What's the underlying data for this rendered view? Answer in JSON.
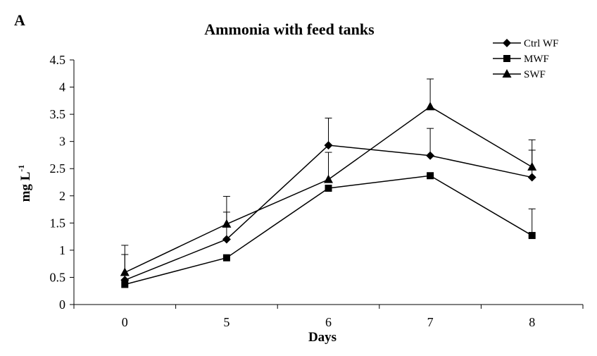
{
  "panel_label": "A",
  "chart_data": {
    "type": "line",
    "title": "Ammonia with feed tanks",
    "xlabel": "Days",
    "ylabel_main": "mg L",
    "ylabel_sup": "-1",
    "categories": [
      "0",
      "5",
      "6",
      "7",
      "8"
    ],
    "ylim": [
      0,
      4.5
    ],
    "yticks": [
      "0",
      "0.5",
      "1",
      "1.5",
      "2",
      "2.5",
      "3",
      "3.5",
      "4",
      "4.5"
    ],
    "grid": false,
    "legend_position": "top-right",
    "series": [
      {
        "name": "Ctrl WF",
        "marker": "diamond",
        "values": [
          0.45,
          1.2,
          2.93,
          2.74,
          2.34
        ],
        "errors": [
          0.47,
          0.5,
          0.5,
          0.5,
          0.5
        ]
      },
      {
        "name": "MWF",
        "marker": "square",
        "values": [
          0.37,
          0.86,
          2.14,
          2.37,
          1.27
        ],
        "errors": [
          0.0,
          0.0,
          0.0,
          0.0,
          0.49
        ]
      },
      {
        "name": "SWF",
        "marker": "triangle",
        "values": [
          0.59,
          1.48,
          2.3,
          3.64,
          2.53
        ],
        "errors": [
          0.5,
          0.51,
          0.5,
          0.51,
          0.5
        ]
      }
    ]
  }
}
